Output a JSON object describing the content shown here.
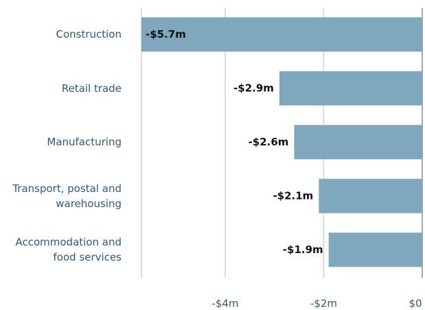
{
  "chart_data": {
    "type": "bar",
    "orientation": "horizontal",
    "categories": [
      "Construction",
      "Retail trade",
      "Manufacturing",
      "Transport, postal and warehousing",
      "Accommodation and food services"
    ],
    "values": [
      -5.7,
      -2.9,
      -2.6,
      -2.1,
      -1.9
    ],
    "value_labels": [
      "-$5.7m",
      "-$2.9m",
      "-$2.6m",
      "-$2.1m",
      "-$1.9m"
    ],
    "color": "#7fa8bf",
    "xlim": [
      -5.7,
      0
    ],
    "xticks": [
      {
        "value": -4,
        "label": "-$4m"
      },
      {
        "value": -2,
        "label": "-$2m"
      },
      {
        "value": 0,
        "label": "$0"
      }
    ],
    "grid": true
  }
}
